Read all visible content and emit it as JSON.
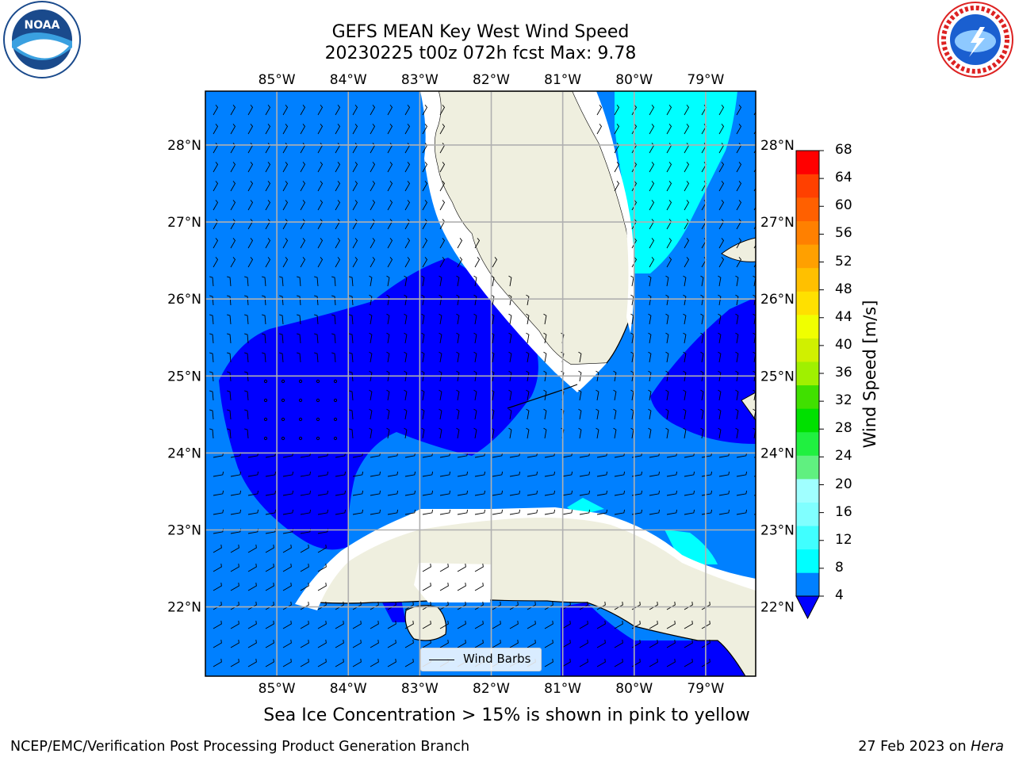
{
  "title": {
    "line1": "GEFS MEAN Key West Wind Speed",
    "line2": "20230225 t00z 072h fcst   Max: 9.78"
  },
  "logos": {
    "left": "noa-logo-icon",
    "right": "nws-logo-icon"
  },
  "map": {
    "lon_ticks": [
      "85°W",
      "84°W",
      "83°W",
      "82°W",
      "81°W",
      "80°W",
      "79°W"
    ],
    "lat_ticks": [
      "28°N",
      "27°N",
      "26°N",
      "25°N",
      "24°N",
      "23°N",
      "22°N"
    ],
    "extent": {
      "lon": [
        -86.0,
        -78.3
      ],
      "lat": [
        21.1,
        28.7
      ]
    }
  },
  "legend": {
    "label": "Wind Barbs"
  },
  "colorbar": {
    "title": "Wind Speed [m/s]",
    "levels": [
      4,
      8,
      12,
      16,
      20,
      24,
      28,
      32,
      36,
      40,
      44,
      48,
      52,
      56,
      60,
      64,
      68
    ],
    "label_values": [
      "4",
      "8",
      "12",
      "16",
      "20",
      "24",
      "28",
      "32",
      "36",
      "40",
      "44",
      "48",
      "52",
      "56",
      "60",
      "64",
      "68"
    ],
    "colors": [
      "#0080ff",
      "#00ffff",
      "#40ffff",
      "#80ffff",
      "#a0ffff",
      "#60f080",
      "#20f040",
      "#00e000",
      "#40e000",
      "#a0f000",
      "#d0f000",
      "#f0ff00",
      "#ffe000",
      "#ffc000",
      "#ffa000",
      "#ff8000",
      "#ff6000",
      "#ff4000",
      "#ff0000"
    ],
    "extend_color": "#0000ff"
  },
  "field_colors": {
    "band_4_8": "#0080ff",
    "band_0_4": "#0000ff",
    "band_8_12": "#00ffff",
    "land": "#efefdf"
  },
  "note": "Sea Ice Concentration > 15% is shown in pink to yellow",
  "footer": {
    "left": "NCEP/EMC/Verification Post Processing Product Generation Branch",
    "right_date": "27 Feb 2023 on ",
    "right_host": "Hera"
  }
}
